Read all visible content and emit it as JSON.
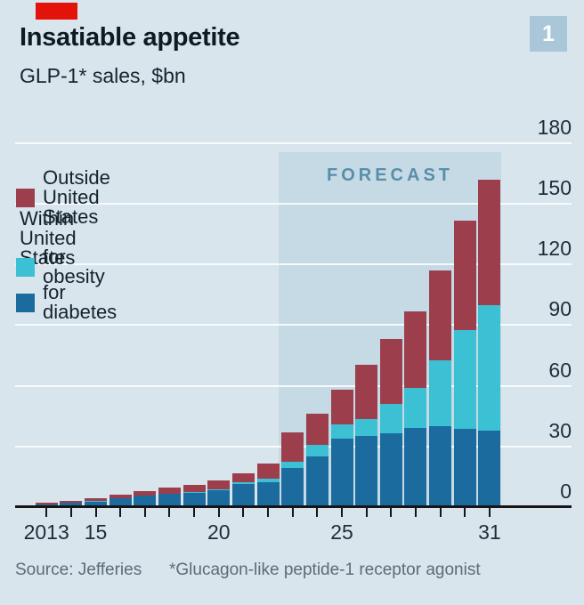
{
  "header": {
    "title": "Insatiable appetite",
    "subtitle": "GLP-1* sales, $bn",
    "figure_number": "1"
  },
  "legend": {
    "outside_label": "Outside United States",
    "within_label": "Within United States",
    "obesity_label": "for obesity",
    "diabetes_label": "for diabetes"
  },
  "forecast_label": "FORECAST",
  "footer": {
    "source": "Source: Jefferies",
    "footnote": "*Glucagon-like peptide-1 receptor agonist"
  },
  "colors": {
    "background": "#d8e5ed",
    "forecast_band": "#c6dae5",
    "outside_us": "#9d3e4d",
    "obesity": "#3cc0d3",
    "diabetes": "#1c6b9e",
    "economist_red": "#e3120b",
    "badge_background": "#a9c7d9",
    "forecast_text": "#578fab"
  },
  "chart_data": {
    "type": "bar",
    "stacked": true,
    "title": "Insatiable appetite",
    "subtitle": "GLP-1* sales, $bn",
    "x": [
      2013,
      2014,
      2015,
      2016,
      2017,
      2018,
      2019,
      2020,
      2021,
      2022,
      2023,
      2024,
      2025,
      2026,
      2027,
      2028,
      2029,
      2030,
      2031
    ],
    "x_tick_labels": [
      {
        "index": 0,
        "label": "2013"
      },
      {
        "index": 2,
        "label": "15"
      },
      {
        "index": 7,
        "label": "20"
      },
      {
        "index": 12,
        "label": "25"
      },
      {
        "index": 18,
        "label": "31"
      }
    ],
    "series": [
      {
        "name": "Within United States — for diabetes",
        "color_key": "diabetes",
        "values": [
          1.2,
          2.0,
          2.8,
          4.2,
          5.6,
          6.4,
          7.0,
          8.3,
          11.3,
          12.5,
          19.4,
          25.0,
          33.7,
          35.0,
          36.5,
          39.0,
          40.0,
          38.5,
          38.0
        ]
      },
      {
        "name": "Within United States — for obesity",
        "color_key": "obesity",
        "values": [
          0.0,
          0.1,
          0.1,
          0.2,
          0.3,
          0.4,
          0.5,
          0.5,
          1.1,
          1.8,
          2.9,
          6.0,
          7.3,
          8.4,
          14.7,
          20.0,
          32.5,
          49.0,
          62.0
        ]
      },
      {
        "name": "Outside United States",
        "color_key": "outside_us",
        "values": [
          1.0,
          1.1,
          1.5,
          1.8,
          2.2,
          2.7,
          3.5,
          4.2,
          4.2,
          7.2,
          14.7,
          15.4,
          17.0,
          27.0,
          31.8,
          38.0,
          44.5,
          54.0,
          62.0
        ]
      }
    ],
    "y_ticks": [
      0,
      30,
      60,
      90,
      120,
      150,
      180
    ],
    "ylim": [
      0,
      180
    ],
    "forecast_start_year": 2023,
    "grid": "horizontal",
    "legend_position": "top-left",
    "y_axis_side": "right"
  }
}
